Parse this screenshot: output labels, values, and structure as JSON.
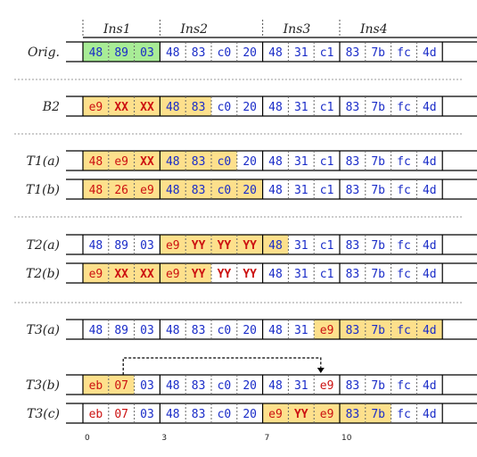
{
  "columns": 16,
  "instructions": [
    {
      "label": "Ins1",
      "start": 0,
      "end": 3
    },
    {
      "label": "Ins2",
      "start": 3,
      "end": 7
    },
    {
      "label": "Ins3",
      "start": 7,
      "end": 10
    },
    {
      "label": "Ins4",
      "start": 10,
      "end": 16
    }
  ],
  "offsets": [
    {
      "col": 0,
      "label": "0"
    },
    {
      "col": 3,
      "label": "3"
    },
    {
      "col": 7,
      "label": "7"
    },
    {
      "col": 10,
      "label": "10"
    }
  ],
  "colors": {
    "blue": "#1a2cc8",
    "red": "#cc1111",
    "green_bg": "#a8ec96",
    "yellow_bg": "#fde08c",
    "separator": "#999999"
  },
  "rows": [
    {
      "label": "Orig.",
      "group": 0,
      "bytes": [
        "48",
        "89",
        "03",
        "48",
        "83",
        "c0",
        "20",
        "48",
        "31",
        "c1",
        "83",
        "7b",
        "fc",
        "4d"
      ],
      "colors": [
        "b",
        "b",
        "b",
        "b",
        "b",
        "b",
        "b",
        "b",
        "b",
        "b",
        "b",
        "b",
        "b",
        "b"
      ],
      "bg": [
        "g",
        "g",
        "g",
        "",
        "",
        "",
        "",
        "",
        "",
        "",
        "",
        "",
        "",
        ""
      ]
    },
    {
      "label": "B2",
      "group": 1,
      "bytes": [
        "e9",
        "XX",
        "XX",
        "48",
        "83",
        "c0",
        "20",
        "48",
        "31",
        "c1",
        "83",
        "7b",
        "fc",
        "4d"
      ],
      "colors": [
        "r",
        "r",
        "r",
        "b",
        "b",
        "b",
        "b",
        "b",
        "b",
        "b",
        "b",
        "b",
        "b",
        "b"
      ],
      "bg": [
        "y",
        "y",
        "y",
        "y",
        "y",
        "",
        "",
        "",
        "",
        "",
        "",
        "",
        "",
        ""
      ]
    },
    {
      "label": "T1(a)",
      "group": 2,
      "bytes": [
        "48",
        "e9",
        "XX",
        "48",
        "83",
        "c0",
        "20",
        "48",
        "31",
        "c1",
        "83",
        "7b",
        "fc",
        "4d"
      ],
      "colors": [
        "r",
        "r",
        "r",
        "b",
        "b",
        "b",
        "b",
        "b",
        "b",
        "b",
        "b",
        "b",
        "b",
        "b"
      ],
      "bg": [
        "y",
        "y",
        "y",
        "y",
        "y",
        "y",
        "",
        "",
        "",
        "",
        "",
        "",
        "",
        ""
      ]
    },
    {
      "label": "T1(b)",
      "group": 2,
      "bytes": [
        "48",
        "26",
        "e9",
        "48",
        "83",
        "c0",
        "20",
        "48",
        "31",
        "c1",
        "83",
        "7b",
        "fc",
        "4d"
      ],
      "colors": [
        "r",
        "r",
        "r",
        "b",
        "b",
        "b",
        "b",
        "b",
        "b",
        "b",
        "b",
        "b",
        "b",
        "b"
      ],
      "bg": [
        "y",
        "y",
        "y",
        "y",
        "y",
        "y",
        "y",
        "",
        "",
        "",
        "",
        "",
        "",
        ""
      ]
    },
    {
      "label": "T2(a)",
      "group": 3,
      "bytes": [
        "48",
        "89",
        "03",
        "e9",
        "YY",
        "YY",
        "YY",
        "48",
        "31",
        "c1",
        "83",
        "7b",
        "fc",
        "4d"
      ],
      "colors": [
        "b",
        "b",
        "b",
        "r",
        "r",
        "r",
        "r",
        "b",
        "b",
        "b",
        "b",
        "b",
        "b",
        "b"
      ],
      "bg": [
        "",
        "",
        "",
        "y",
        "y",
        "y",
        "y",
        "y",
        "",
        "",
        "",
        "",
        "",
        ""
      ]
    },
    {
      "label": "T2(b)",
      "group": 3,
      "bytes": [
        "e9",
        "XX",
        "XX",
        "e9",
        "YY",
        "YY",
        "YY",
        "48",
        "31",
        "c1",
        "83",
        "7b",
        "fc",
        "4d"
      ],
      "colors": [
        "r",
        "r",
        "r",
        "r",
        "r",
        "r",
        "r",
        "b",
        "b",
        "b",
        "b",
        "b",
        "b",
        "b"
      ],
      "bg": [
        "y",
        "y",
        "y",
        "y",
        "y",
        "",
        "",
        "",
        "",
        "",
        "",
        "",
        "",
        ""
      ]
    },
    {
      "label": "T3(a)",
      "group": 4,
      "bytes": [
        "48",
        "89",
        "03",
        "48",
        "83",
        "c0",
        "20",
        "48",
        "31",
        "e9",
        "83",
        "7b",
        "fc",
        "4d"
      ],
      "colors": [
        "b",
        "b",
        "b",
        "b",
        "b",
        "b",
        "b",
        "b",
        "b",
        "r",
        "b",
        "b",
        "b",
        "b"
      ],
      "bg": [
        "",
        "",
        "",
        "",
        "",
        "",
        "",
        "",
        "",
        "y",
        "y",
        "y",
        "y",
        "y"
      ]
    },
    {
      "label": "T3(b)",
      "group": 5,
      "bytes": [
        "eb",
        "07",
        "03",
        "48",
        "83",
        "c0",
        "20",
        "48",
        "31",
        "e9",
        "83",
        "7b",
        "fc",
        "4d"
      ],
      "colors": [
        "r",
        "r",
        "b",
        "b",
        "b",
        "b",
        "b",
        "b",
        "b",
        "r",
        "b",
        "b",
        "b",
        "b"
      ],
      "bg": [
        "y",
        "y",
        "",
        "",
        "",
        "",
        "",
        "",
        "",
        "",
        "",
        "",
        "",
        ""
      ]
    },
    {
      "label": "T3(c)",
      "group": 5,
      "bytes": [
        "eb",
        "07",
        "03",
        "48",
        "83",
        "c0",
        "20",
        "e9",
        "YY",
        "e9",
        "83",
        "7b",
        "fc",
        "4d"
      ],
      "colors": [
        "r",
        "r",
        "b",
        "b",
        "b",
        "b",
        "b",
        "r",
        "r",
        "r",
        "b",
        "b",
        "b",
        "b"
      ],
      "bg": [
        "",
        "",
        "",
        "",
        "",
        "",
        "",
        "y",
        "y",
        "y",
        "y",
        "y",
        "",
        ""
      ]
    }
  ],
  "jump_arrow": {
    "from_col": 1,
    "to_col": 9,
    "row": 7
  }
}
